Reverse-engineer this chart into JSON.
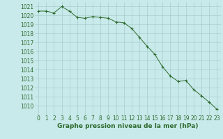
{
  "x": [
    0,
    1,
    2,
    3,
    4,
    5,
    6,
    7,
    8,
    9,
    10,
    11,
    12,
    13,
    14,
    15,
    16,
    17,
    18,
    19,
    20,
    21,
    22,
    23
  ],
  "y": [
    1020.5,
    1020.5,
    1020.3,
    1021.0,
    1020.5,
    1019.8,
    1019.7,
    1019.9,
    1019.8,
    1019.7,
    1019.3,
    1019.2,
    1018.6,
    1017.6,
    1016.6,
    1015.7,
    1014.3,
    1013.3,
    1012.7,
    1012.8,
    1011.8,
    1011.1,
    1010.4,
    1009.6
  ],
  "line_color": "#2d6a2d",
  "marker": "+",
  "marker_color": "#2d6a2d",
  "bg_color": "#c8eaea",
  "grid_color": "#a8cccc",
  "tick_color": "#2d6a2d",
  "label_color": "#2d6a2d",
  "xlabel": "Graphe pression niveau de la mer (hPa)",
  "ylim": [
    1009.0,
    1021.5
  ],
  "xlim": [
    -0.5,
    23.5
  ],
  "yticks": [
    1010,
    1011,
    1012,
    1013,
    1014,
    1015,
    1016,
    1017,
    1018,
    1019,
    1020,
    1021
  ],
  "xticks": [
    0,
    1,
    2,
    3,
    4,
    5,
    6,
    7,
    8,
    9,
    10,
    11,
    12,
    13,
    14,
    15,
    16,
    17,
    18,
    19,
    20,
    21,
    22,
    23
  ],
  "xlabel_fontsize": 6.5,
  "tick_fontsize": 5.5
}
